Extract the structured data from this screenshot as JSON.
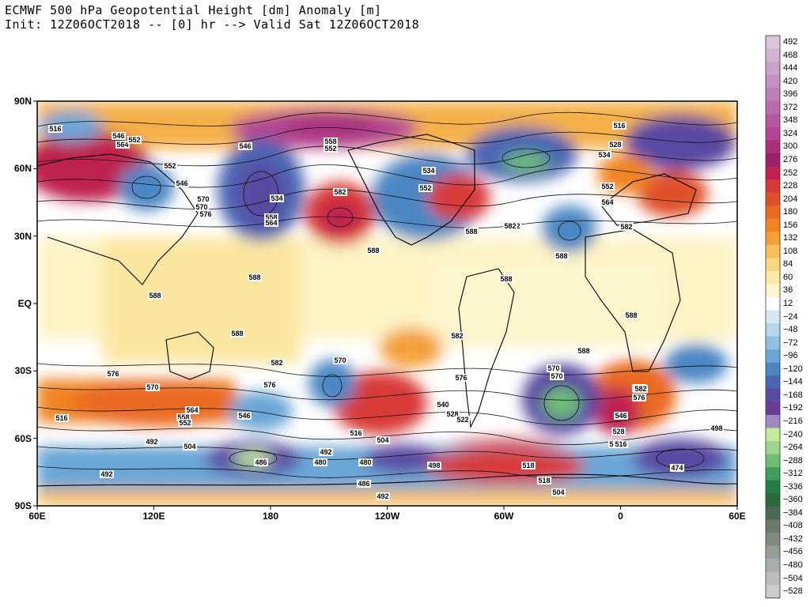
{
  "title": {
    "line1": "ECMWF 500 hPa Geopotential Height [dm] Anomaly [m]",
    "line2": "Init: 12Z06OCT2018 -- [0] hr --> Valid Sat 12Z06OCT2018"
  },
  "lat_labels": [
    "90N",
    "60N",
    "30N",
    "EQ",
    "30S",
    "60S",
    "90S"
  ],
  "lon_labels": [
    "60E",
    "120E",
    "180",
    "120W",
    "60W",
    "0",
    "60E"
  ],
  "colorbar": {
    "labels": [
      "492",
      "468",
      "444",
      "420",
      "396",
      "372",
      "348",
      "324",
      "300",
      "276",
      "252",
      "228",
      "204",
      "180",
      "156",
      "132",
      "108",
      "84",
      "60",
      "36",
      "12",
      "−24",
      "−48",
      "−72",
      "−96",
      "−120",
      "−144",
      "−168",
      "−192",
      "−216",
      "−240",
      "−264",
      "−288",
      "−312",
      "−336",
      "−360",
      "−384",
      "−408",
      "−432",
      "−456",
      "−480",
      "−504",
      "−528"
    ],
    "colors": [
      "#d9c4d8",
      "#d3b3d2",
      "#cba2ca",
      "#c490c1",
      "#bc7eb7",
      "#b86aad",
      "#b657a1",
      "#b44494",
      "#a9307e",
      "#9a2268",
      "#bf2150",
      "#d83a38",
      "#e0512a",
      "#ea6a22",
      "#f08424",
      "#f4a03a",
      "#f7be5c",
      "#f9d780",
      "#fbe9a6",
      "#fdf5cc",
      "#ffffff",
      "#d7e8f3",
      "#b6d6ec",
      "#8fc0e2",
      "#6aa6d6",
      "#4c87c4",
      "#4b66b3",
      "#5a4aa2",
      "#6a3c94",
      "#9f88c0",
      "#c6ea9c",
      "#9fd58b",
      "#6fbe73",
      "#3e9e5a",
      "#1f7f45",
      "#2c6a3e",
      "#4c6a55",
      "#6a7a6c",
      "#808a80",
      "#969c96",
      "#a9ada9",
      "#bcbcbc",
      "#cccccc"
    ]
  },
  "contour_labels": [
    {
      "text": "516"
    },
    {
      "text": "546"
    },
    {
      "text": "564"
    },
    {
      "text": "552"
    },
    {
      "text": "552"
    },
    {
      "text": "546"
    },
    {
      "text": "558"
    },
    {
      "text": "552"
    },
    {
      "text": "546"
    },
    {
      "text": "534"
    },
    {
      "text": "570"
    },
    {
      "text": "558"
    },
    {
      "text": "564"
    },
    {
      "text": "582"
    },
    {
      "text": "534"
    },
    {
      "text": "552"
    },
    {
      "text": "570"
    },
    {
      "text": "576"
    },
    {
      "text": "582"
    },
    {
      "text": "588"
    },
    {
      "text": "588"
    },
    {
      "text": "588"
    },
    {
      "text": "588"
    },
    {
      "text": "588"
    },
    {
      "text": "588"
    },
    {
      "text": "588"
    },
    {
      "text": "588"
    },
    {
      "text": "516"
    },
    {
      "text": "528"
    },
    {
      "text": "534"
    },
    {
      "text": "552"
    },
    {
      "text": "564"
    },
    {
      "text": "582"
    },
    {
      "text": "582"
    },
    {
      "text": "588"
    },
    {
      "text": "582"
    },
    {
      "text": "582"
    },
    {
      "text": "576"
    },
    {
      "text": "570"
    },
    {
      "text": "582"
    },
    {
      "text": "576"
    },
    {
      "text": "570"
    },
    {
      "text": "582"
    },
    {
      "text": "576"
    },
    {
      "text": "576"
    },
    {
      "text": "564"
    },
    {
      "text": "558"
    },
    {
      "text": "552"
    },
    {
      "text": "546"
    },
    {
      "text": "540"
    },
    {
      "text": "528"
    },
    {
      "text": "522"
    },
    {
      "text": "546"
    },
    {
      "text": "528"
    },
    {
      "text": "516"
    },
    {
      "text": "516"
    },
    {
      "text": "492"
    },
    {
      "text": "504"
    },
    {
      "text": "486"
    },
    {
      "text": "492"
    },
    {
      "text": "480"
    },
    {
      "text": "480"
    },
    {
      "text": "498"
    },
    {
      "text": "504"
    },
    {
      "text": "516"
    },
    {
      "text": "504"
    },
    {
      "text": "518"
    },
    {
      "text": "518"
    },
    {
      "text": "486"
    },
    {
      "text": "492"
    },
    {
      "text": "474"
    },
    {
      "text": "498"
    },
    {
      "text": "492"
    },
    {
      "text": "570"
    },
    {
      "text": "582"
    },
    {
      "text": "576"
    },
    {
      "text": "570"
    },
    {
      "text": "516"
    }
  ]
}
